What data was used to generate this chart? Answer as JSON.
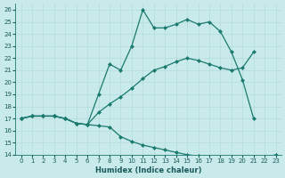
{
  "bg_color": "#c8eaea",
  "line_color": "#1a7a6e",
  "grid_color": "#b0d8d8",
  "xlabel": "Humidex (Indice chaleur)",
  "ylim": [
    14,
    26.5
  ],
  "xlim": [
    -0.5,
    23.5
  ],
  "line1_x": [
    0,
    1,
    2,
    3,
    4,
    5,
    6,
    7,
    8,
    9,
    10,
    11,
    12,
    13,
    14,
    15,
    16,
    17,
    18,
    19,
    20,
    21
  ],
  "line1_y": [
    17.0,
    17.2,
    17.2,
    17.2,
    17.0,
    16.6,
    16.5,
    19.0,
    21.5,
    21.0,
    23.0,
    26.0,
    24.5,
    24.5,
    24.8,
    25.2,
    24.8,
    25.0,
    24.2,
    22.5,
    20.2,
    17.0
  ],
  "line2_x": [
    0,
    1,
    2,
    3,
    4,
    5,
    6,
    7,
    8,
    9,
    10,
    11,
    12,
    13,
    14,
    15,
    16,
    17,
    18,
    19,
    20,
    21
  ],
  "line2_y": [
    17.0,
    17.2,
    17.2,
    17.2,
    17.0,
    16.6,
    16.5,
    17.5,
    18.2,
    18.8,
    19.5,
    20.3,
    21.0,
    21.3,
    21.7,
    22.0,
    21.8,
    21.5,
    21.2,
    21.0,
    21.2,
    22.5
  ],
  "line3_x": [
    0,
    1,
    2,
    3,
    4,
    5,
    6,
    7,
    8,
    9,
    10,
    11,
    12,
    13,
    14,
    15,
    16,
    17,
    18,
    19,
    20,
    21,
    22,
    23
  ],
  "line3_y": [
    17.0,
    17.2,
    17.2,
    17.2,
    17.0,
    16.6,
    16.5,
    16.4,
    16.3,
    15.5,
    15.1,
    14.8,
    14.6,
    14.4,
    14.2,
    14.0,
    13.9,
    13.8,
    13.7,
    13.6,
    13.5,
    13.4,
    13.8,
    14.0
  ],
  "xlabel_fontsize": 6,
  "tick_fontsize": 5
}
